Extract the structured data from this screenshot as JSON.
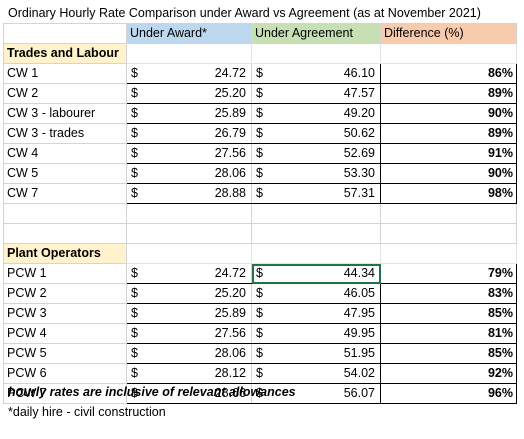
{
  "title": "Ordinary Hourly Rate Comparison under Award vs Agreement  (as at November 2021)",
  "headers": {
    "award": "Under Award*",
    "agreement": "Under Agreement",
    "difference": "Difference (%)"
  },
  "currency_symbol": "$",
  "sections": [
    {
      "name": "Trades and Labour",
      "rows": [
        {
          "label": "CW 1",
          "award": "24.72",
          "agreement": "46.10",
          "diff": "86%"
        },
        {
          "label": "CW 2",
          "award": "25.20",
          "agreement": "47.57",
          "diff": "89%"
        },
        {
          "label": "CW 3 - labourer",
          "award": "25.89",
          "agreement": "49.20",
          "diff": "90%"
        },
        {
          "label": "CW 3 - trades",
          "award": "26.79",
          "agreement": "50.62",
          "diff": "89%"
        },
        {
          "label": "CW 4",
          "award": "27.56",
          "agreement": "52.69",
          "diff": "91%"
        },
        {
          "label": "CW 5",
          "award": "28.06",
          "agreement": "53.30",
          "diff": "90%"
        },
        {
          "label": "CW 7",
          "award": "28.88",
          "agreement": "57.31",
          "diff": "98%"
        }
      ]
    },
    {
      "name": "Plant Operators",
      "rows": [
        {
          "label": "PCW 1",
          "award": "24.72",
          "agreement": "44.34",
          "diff": "79%"
        },
        {
          "label": "PCW 2",
          "award": "25.20",
          "agreement": "46.05",
          "diff": "83%"
        },
        {
          "label": "PCW 3",
          "award": "25.89",
          "agreement": "47.95",
          "diff": "85%"
        },
        {
          "label": "PCW 4",
          "award": "27.56",
          "agreement": "49.95",
          "diff": "81%"
        },
        {
          "label": "PCW 5",
          "award": "28.06",
          "agreement": "51.95",
          "diff": "85%"
        },
        {
          "label": "PCW 6",
          "award": "28.12",
          "agreement": "54.02",
          "diff": "92%"
        },
        {
          "label": "PCW 7",
          "award": "28.66",
          "agreement": "56.07",
          "diff": "96%"
        }
      ]
    }
  ],
  "notes": {
    "inclusive": "hourly rates are inclusive of relevant allowances",
    "award_footnote": "*daily hire - civil construction"
  },
  "colors": {
    "award_header": "#bdd7ee",
    "agreement_header": "#c6e0b4",
    "difference_header": "#f8cbad",
    "section_header": "#fff2cc",
    "selection": "#217346"
  }
}
